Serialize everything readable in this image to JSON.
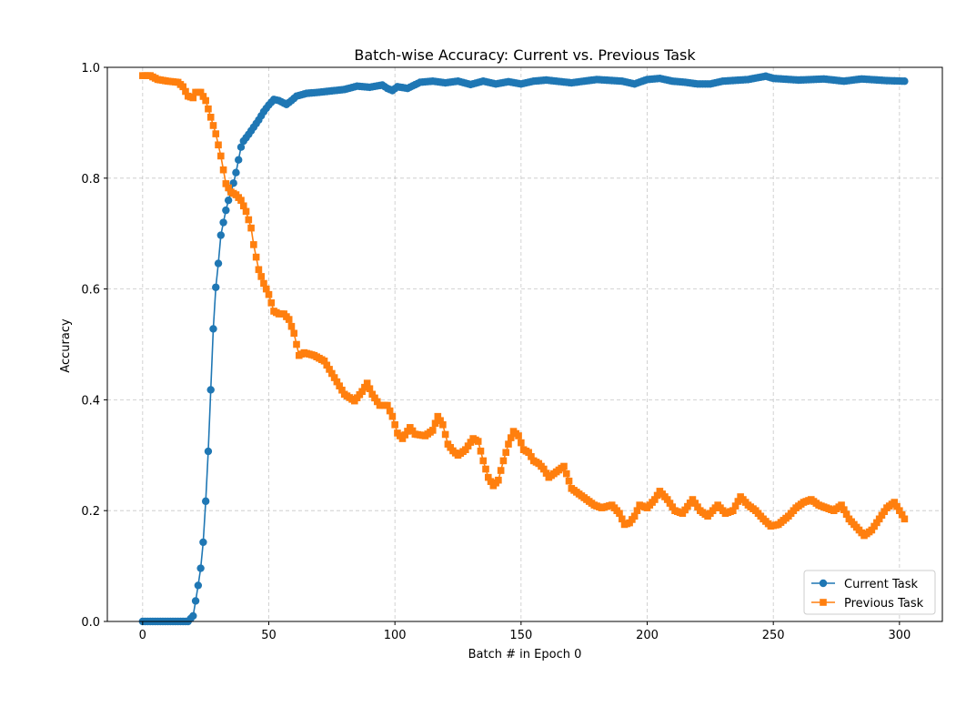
{
  "chart_data": {
    "type": "line",
    "title": "Batch-wise Accuracy: Current vs. Previous Task",
    "xlabel": "Batch # in Epoch 0",
    "ylabel": "Accuracy",
    "xlim": [
      -14,
      317
    ],
    "ylim": [
      0,
      1
    ],
    "xticks": [
      0,
      50,
      100,
      150,
      200,
      250,
      300
    ],
    "yticks": [
      0.0,
      0.2,
      0.4,
      0.6,
      0.8,
      1.0
    ],
    "xtick_labels": [
      "0",
      "50",
      "100",
      "150",
      "200",
      "250",
      "300"
    ],
    "ytick_labels": [
      "0.0",
      "0.2",
      "0.4",
      "0.6",
      "0.8",
      "1.0"
    ],
    "grid": true,
    "legend_position": "lower-right",
    "series": [
      {
        "name": "Current Task",
        "color": "#1f77b4",
        "marker": "circle",
        "anchors": [
          [
            0,
            0.0
          ],
          [
            18,
            0.0
          ],
          [
            20,
            0.01
          ],
          [
            21,
            0.037
          ],
          [
            22,
            0.065
          ],
          [
            23,
            0.096
          ],
          [
            24,
            0.143
          ],
          [
            25,
            0.217
          ],
          [
            26,
            0.307
          ],
          [
            27,
            0.418
          ],
          [
            28,
            0.528
          ],
          [
            29,
            0.603
          ],
          [
            30,
            0.646
          ],
          [
            31,
            0.697
          ],
          [
            32,
            0.72
          ],
          [
            33,
            0.742
          ],
          [
            34,
            0.76
          ],
          [
            36,
            0.791
          ],
          [
            37,
            0.81
          ],
          [
            38,
            0.833
          ],
          [
            39,
            0.856
          ],
          [
            40,
            0.867
          ],
          [
            42,
            0.879
          ],
          [
            44,
            0.892
          ],
          [
            46,
            0.905
          ],
          [
            48,
            0.92
          ],
          [
            50,
            0.932
          ],
          [
            52,
            0.942
          ],
          [
            54,
            0.94
          ],
          [
            57,
            0.933
          ],
          [
            59,
            0.94
          ],
          [
            61,
            0.948
          ],
          [
            65,
            0.953
          ],
          [
            70,
            0.955
          ],
          [
            80,
            0.96
          ],
          [
            85,
            0.966
          ],
          [
            90,
            0.964
          ],
          [
            95,
            0.968
          ],
          [
            97,
            0.962
          ],
          [
            99,
            0.958
          ],
          [
            101,
            0.965
          ],
          [
            105,
            0.962
          ],
          [
            110,
            0.973
          ],
          [
            115,
            0.975
          ],
          [
            120,
            0.972
          ],
          [
            125,
            0.975
          ],
          [
            130,
            0.969
          ],
          [
            135,
            0.975
          ],
          [
            140,
            0.97
          ],
          [
            145,
            0.974
          ],
          [
            150,
            0.97
          ],
          [
            155,
            0.975
          ],
          [
            160,
            0.977
          ],
          [
            170,
            0.972
          ],
          [
            180,
            0.978
          ],
          [
            190,
            0.975
          ],
          [
            195,
            0.97
          ],
          [
            200,
            0.978
          ],
          [
            205,
            0.98
          ],
          [
            210,
            0.975
          ],
          [
            215,
            0.973
          ],
          [
            220,
            0.97
          ],
          [
            225,
            0.97
          ],
          [
            230,
            0.975
          ],
          [
            240,
            0.978
          ],
          [
            247,
            0.984
          ],
          [
            250,
            0.98
          ],
          [
            260,
            0.977
          ],
          [
            270,
            0.979
          ],
          [
            278,
            0.975
          ],
          [
            285,
            0.979
          ],
          [
            295,
            0.976
          ],
          [
            302,
            0.975
          ]
        ]
      },
      {
        "name": "Previous Task",
        "color": "#ff7f0e",
        "marker": "square",
        "anchors": [
          [
            0,
            0.985
          ],
          [
            3,
            0.985
          ],
          [
            6,
            0.978
          ],
          [
            10,
            0.975
          ],
          [
            14,
            0.973
          ],
          [
            16,
            0.965
          ],
          [
            18,
            0.948
          ],
          [
            20,
            0.945
          ],
          [
            21,
            0.955
          ],
          [
            23,
            0.955
          ],
          [
            25,
            0.94
          ],
          [
            27,
            0.91
          ],
          [
            29,
            0.88
          ],
          [
            31,
            0.84
          ],
          [
            33,
            0.79
          ],
          [
            35,
            0.775
          ],
          [
            37,
            0.77
          ],
          [
            39,
            0.76
          ],
          [
            41,
            0.74
          ],
          [
            43,
            0.71
          ],
          [
            44,
            0.68
          ],
          [
            46,
            0.635
          ],
          [
            48,
            0.61
          ],
          [
            50,
            0.59
          ],
          [
            52,
            0.56
          ],
          [
            54,
            0.555
          ],
          [
            56,
            0.555
          ],
          [
            58,
            0.545
          ],
          [
            60,
            0.52
          ],
          [
            62,
            0.48
          ],
          [
            64,
            0.485
          ],
          [
            68,
            0.48
          ],
          [
            72,
            0.47
          ],
          [
            76,
            0.44
          ],
          [
            80,
            0.41
          ],
          [
            84,
            0.398
          ],
          [
            87,
            0.415
          ],
          [
            89,
            0.43
          ],
          [
            91,
            0.41
          ],
          [
            94,
            0.39
          ],
          [
            97,
            0.39
          ],
          [
            99,
            0.37
          ],
          [
            101,
            0.34
          ],
          [
            103,
            0.33
          ],
          [
            106,
            0.35
          ],
          [
            108,
            0.338
          ],
          [
            112,
            0.335
          ],
          [
            115,
            0.345
          ],
          [
            117,
            0.37
          ],
          [
            119,
            0.355
          ],
          [
            121,
            0.32
          ],
          [
            123,
            0.308
          ],
          [
            125,
            0.3
          ],
          [
            128,
            0.31
          ],
          [
            131,
            0.33
          ],
          [
            133,
            0.325
          ],
          [
            135,
            0.29
          ],
          [
            137,
            0.26
          ],
          [
            139,
            0.245
          ],
          [
            141,
            0.255
          ],
          [
            143,
            0.29
          ],
          [
            145,
            0.32
          ],
          [
            147,
            0.343
          ],
          [
            149,
            0.335
          ],
          [
            151,
            0.31
          ],
          [
            153,
            0.305
          ],
          [
            155,
            0.29
          ],
          [
            157,
            0.285
          ],
          [
            159,
            0.275
          ],
          [
            161,
            0.26
          ],
          [
            164,
            0.27
          ],
          [
            167,
            0.28
          ],
          [
            170,
            0.24
          ],
          [
            173,
            0.23
          ],
          [
            176,
            0.22
          ],
          [
            179,
            0.21
          ],
          [
            182,
            0.205
          ],
          [
            186,
            0.21
          ],
          [
            189,
            0.195
          ],
          [
            191,
            0.175
          ],
          [
            193,
            0.178
          ],
          [
            195,
            0.19
          ],
          [
            197,
            0.21
          ],
          [
            200,
            0.205
          ],
          [
            203,
            0.22
          ],
          [
            205,
            0.235
          ],
          [
            208,
            0.22
          ],
          [
            211,
            0.2
          ],
          [
            214,
            0.195
          ],
          [
            218,
            0.22
          ],
          [
            221,
            0.2
          ],
          [
            224,
            0.19
          ],
          [
            228,
            0.21
          ],
          [
            231,
            0.195
          ],
          [
            234,
            0.2
          ],
          [
            237,
            0.225
          ],
          [
            240,
            0.21
          ],
          [
            243,
            0.2
          ],
          [
            246,
            0.185
          ],
          [
            249,
            0.172
          ],
          [
            252,
            0.175
          ],
          [
            256,
            0.19
          ],
          [
            259,
            0.205
          ],
          [
            262,
            0.215
          ],
          [
            265,
            0.22
          ],
          [
            268,
            0.21
          ],
          [
            271,
            0.205
          ],
          [
            274,
            0.2
          ],
          [
            277,
            0.21
          ],
          [
            280,
            0.185
          ],
          [
            283,
            0.17
          ],
          [
            286,
            0.155
          ],
          [
            289,
            0.165
          ],
          [
            292,
            0.185
          ],
          [
            295,
            0.205
          ],
          [
            298,
            0.215
          ],
          [
            300,
            0.2
          ],
          [
            302,
            0.185
          ]
        ]
      }
    ]
  }
}
